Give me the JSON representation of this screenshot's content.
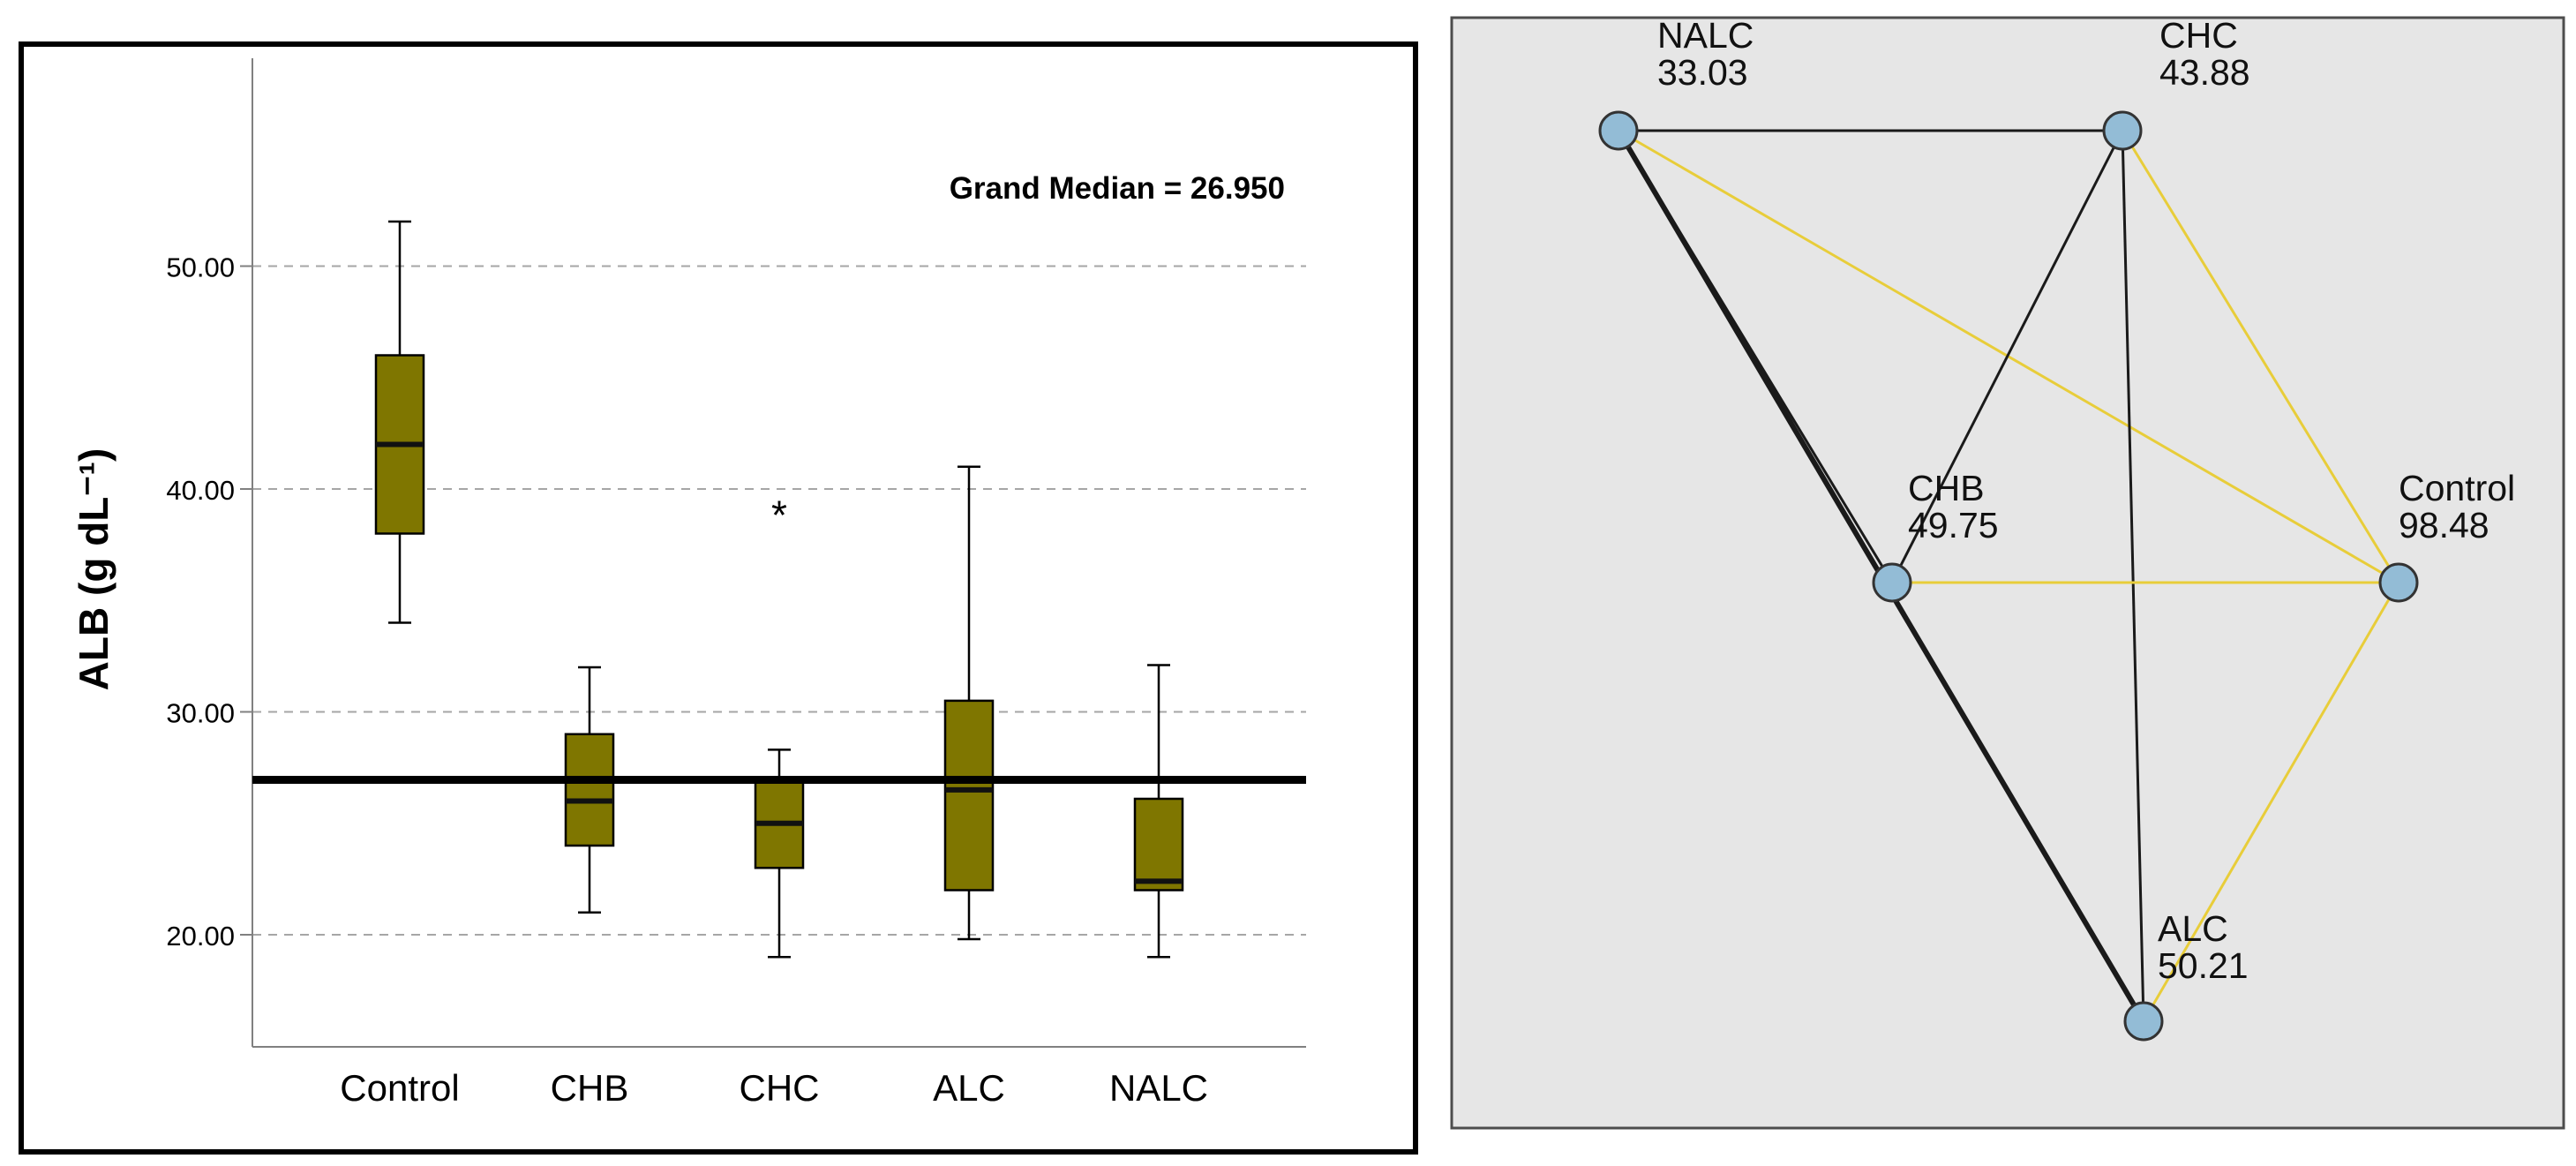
{
  "colors": {
    "box_fill": "#7f7600",
    "box_stroke": "#000000",
    "grid": "#a6a6a6",
    "network_bg": "#e6e6e6",
    "node_fill": "#93bcd6",
    "edge_black": "#1a1a1a",
    "edge_yellow": "#e8cd3a"
  },
  "chart_data": [
    {
      "type": "box",
      "ylabel": "ALB (g dL⁻¹)",
      "ylim": [
        15,
        58
      ],
      "yticks": [
        20,
        30,
        40,
        50
      ],
      "ytick_labels": [
        "20.00",
        "30.00",
        "40.00",
        "50.00"
      ],
      "grid": "horizontal dashed",
      "annotation": "Grand Median = 26.950",
      "grand_median": 26.95,
      "categories": [
        "Control",
        "CHB",
        "CHC",
        "ALC",
        "NALC"
      ],
      "boxes": [
        {
          "category": "Control",
          "whisker_low": 34.0,
          "q1": 38.0,
          "median": 42.0,
          "q3": 46.0,
          "whisker_high": 52.0,
          "outliers": []
        },
        {
          "category": "CHB",
          "whisker_low": 21.0,
          "q1": 24.0,
          "median": 26.0,
          "q3": 29.0,
          "whisker_high": 32.0,
          "outliers": []
        },
        {
          "category": "CHC",
          "whisker_low": 19.0,
          "q1": 23.0,
          "median": 25.0,
          "q3": 27.0,
          "whisker_high": 28.3,
          "outliers": [
            39.0
          ]
        },
        {
          "category": "ALC",
          "whisker_low": 19.8,
          "q1": 22.0,
          "median": 26.5,
          "q3": 30.5,
          "whisker_high": 41.0,
          "outliers": []
        },
        {
          "category": "NALC",
          "whisker_low": 19.0,
          "q1": 22.0,
          "median": 22.4,
          "q3": 26.1,
          "whisker_high": 32.1,
          "outliers": []
        }
      ],
      "outlier_marker": "*"
    },
    {
      "type": "network",
      "nodes": [
        {
          "name": "NALC",
          "value": "33.03"
        },
        {
          "name": "CHC",
          "value": "43.88"
        },
        {
          "name": "CHB",
          "value": "49.75"
        },
        {
          "name": "Control",
          "value": "98.48"
        },
        {
          "name": "ALC",
          "value": "50.21"
        }
      ],
      "edges": [
        {
          "from": "NALC",
          "to": "CHC",
          "color": "black"
        },
        {
          "from": "NALC",
          "to": "Control",
          "color": "yellow"
        },
        {
          "from": "NALC",
          "to": "CHB",
          "color": "black"
        },
        {
          "from": "NALC",
          "to": "ALC",
          "color": "black"
        },
        {
          "from": "CHC",
          "to": "CHB",
          "color": "black"
        },
        {
          "from": "CHC",
          "to": "ALC",
          "color": "black"
        },
        {
          "from": "CHC",
          "to": "Control",
          "color": "yellow"
        },
        {
          "from": "CHB",
          "to": "Control",
          "color": "yellow"
        },
        {
          "from": "Control",
          "to": "ALC",
          "color": "yellow"
        }
      ]
    }
  ]
}
